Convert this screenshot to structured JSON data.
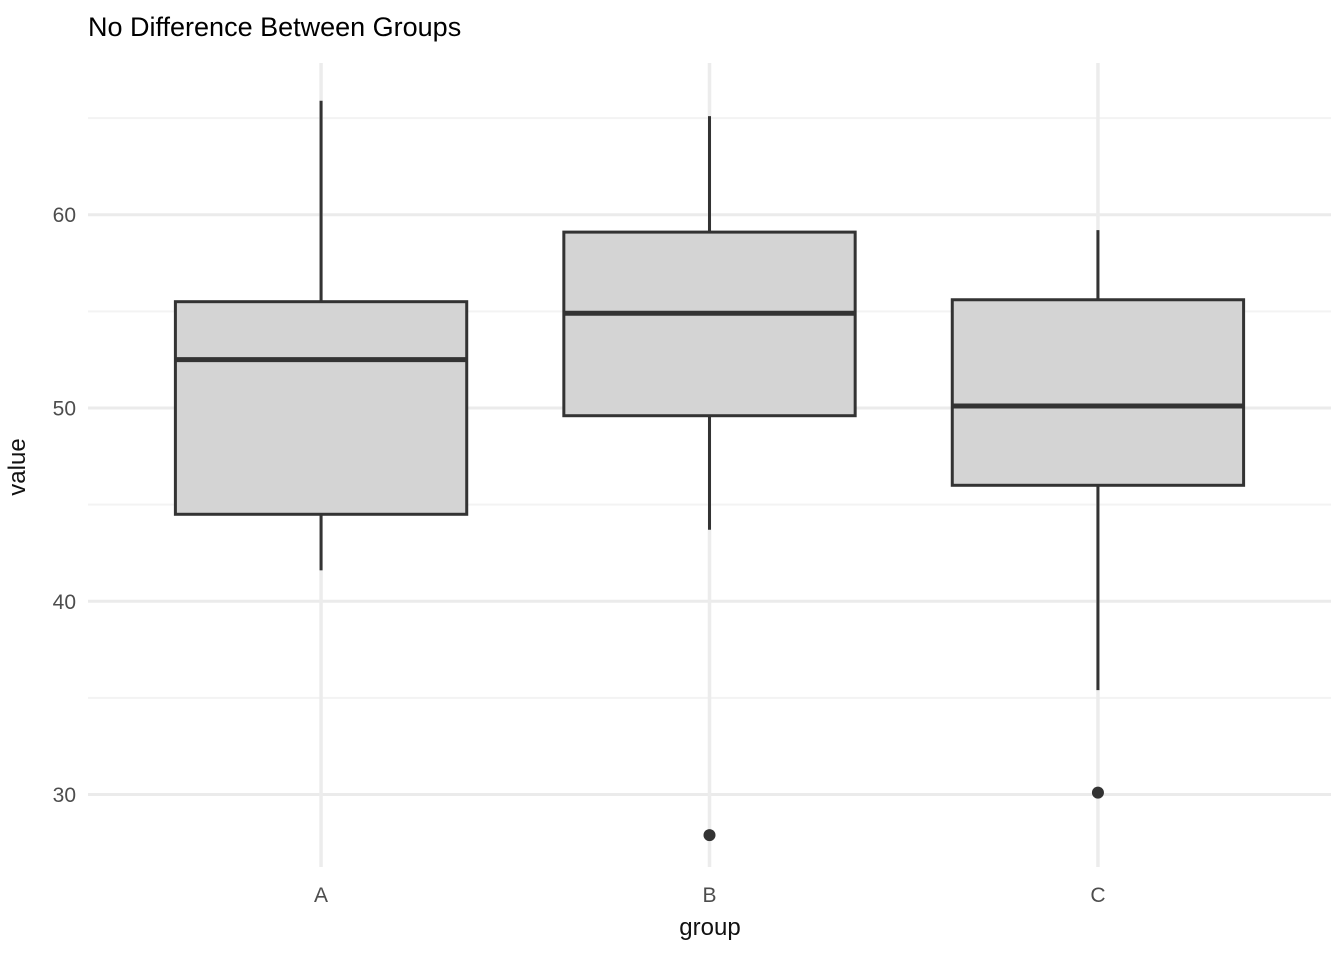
{
  "title": "No Difference Between Groups",
  "chart_data": {
    "type": "boxplot",
    "title": "No Difference Between Groups",
    "xlabel": "group",
    "ylabel": "value",
    "categories": [
      "A",
      "B",
      "C"
    ],
    "y_ticks": [
      30,
      40,
      50,
      60
    ],
    "y_minor_ticks": [
      35,
      45,
      55,
      65
    ],
    "ylim": [
      26.25,
      67.85
    ],
    "grid": "on",
    "legend": "none",
    "box_width": 0.75,
    "series": [
      {
        "group": "A",
        "min": 41.6,
        "q1": 44.5,
        "median": 52.5,
        "q3": 55.5,
        "max": 65.9,
        "outliers": []
      },
      {
        "group": "B",
        "min": 43.7,
        "q1": 49.6,
        "median": 54.9,
        "q3": 59.1,
        "max": 65.1,
        "outliers": [
          27.9
        ]
      },
      {
        "group": "C",
        "min": 35.4,
        "q1": 46.0,
        "median": 50.1,
        "q3": 55.6,
        "max": 59.2,
        "outliers": [
          30.1
        ]
      }
    ],
    "colors": {
      "background": "#ffffff",
      "box_fill": "#d4d4d4",
      "box_border": "#333333",
      "median_line": "#333333",
      "whisker": "#333333",
      "outlier": "#333333",
      "grid_major": "#ebebeb",
      "grid_minor": "#f3f3f3",
      "grid_vertical": "#ececec",
      "axis_tick_text": "#4d4d4d",
      "title_text": "#000000"
    }
  }
}
